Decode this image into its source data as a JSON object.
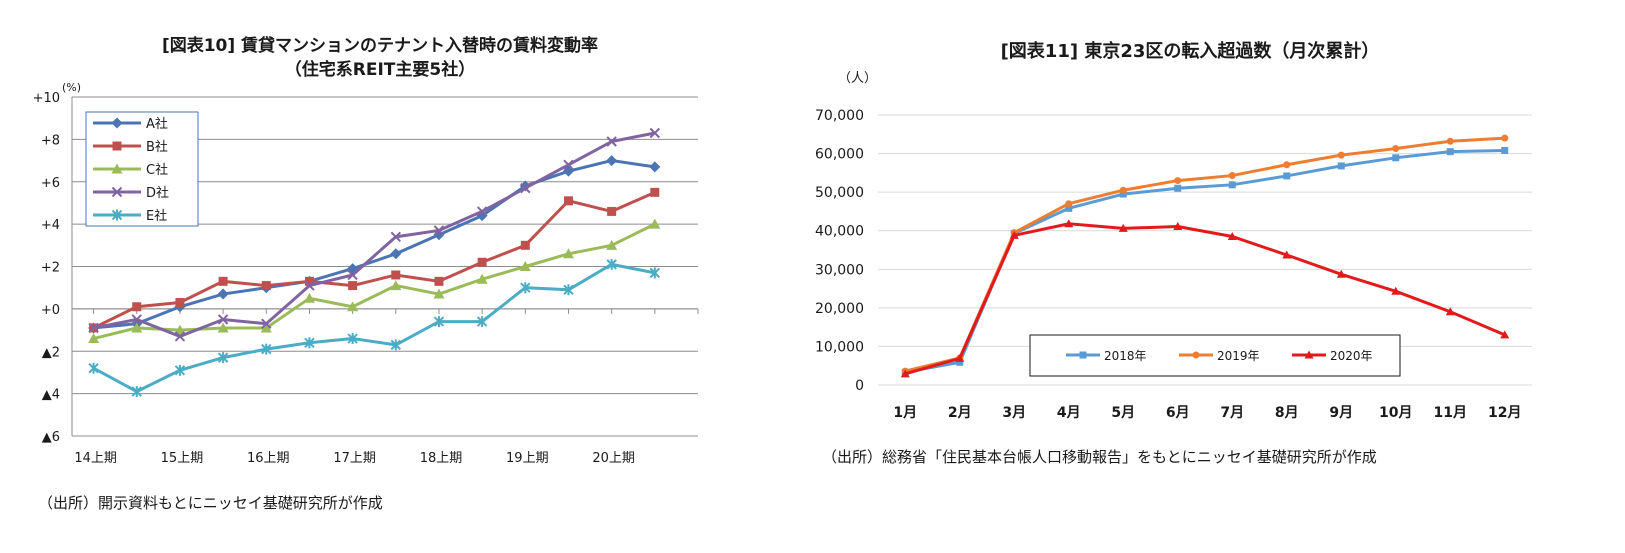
{
  "charts": [
    {
      "title_line1": "[図表10] 賃貸マンションのテナント入替時の賃料変動率",
      "title_line2": "（住宅系REIT主要5社）",
      "unit": "(%)",
      "source": "（出所）開示資料もとにニッセイ基礎研究所が作成"
    },
    {
      "title": "[図表11] 東京23区の転入超過数（月次累計）",
      "unit": "（人）",
      "source": "（出所）総務省「住民基本台帳人口移動報告」をもとにニッセイ基礎研究所が作成"
    }
  ],
  "chart_data": [
    {
      "type": "line",
      "y_tick_labels": [
        "+10",
        "+8",
        "+6",
        "+4",
        "+2",
        "+0",
        "▲2",
        "▲4",
        "▲6"
      ],
      "y_ticks": [
        10,
        8,
        6,
        4,
        2,
        0,
        -2,
        -4,
        -6
      ],
      "ylim": [
        -6,
        10
      ],
      "x_tick_labels": [
        "14上期",
        "15上期",
        "16上期",
        "17上期",
        "18上期",
        "19上期",
        "20上期"
      ],
      "x_tick_positions": [
        0,
        2,
        4,
        6,
        8,
        10,
        12
      ],
      "x_count": 14,
      "grid": true,
      "legend_position": "top-left",
      "series": [
        {
          "name": "A社",
          "color": "#4a74b4",
          "marker": "diamond",
          "values": [
            -0.9,
            -0.7,
            0.1,
            0.7,
            1.0,
            1.3,
            1.9,
            2.6,
            3.5,
            4.4,
            5.8,
            6.5,
            7.0,
            6.7
          ]
        },
        {
          "name": "B社",
          "color": "#c0504d",
          "marker": "square",
          "values": [
            -0.9,
            0.1,
            0.3,
            1.3,
            1.1,
            1.3,
            1.1,
            1.6,
            1.3,
            2.2,
            3.0,
            5.1,
            4.6,
            5.5
          ]
        },
        {
          "name": "C社",
          "color": "#9bbb59",
          "marker": "triangle",
          "values": [
            -1.4,
            -0.9,
            -1.0,
            -0.9,
            -0.9,
            0.5,
            0.1,
            1.1,
            0.7,
            1.4,
            2.0,
            2.6,
            3.0,
            4.0
          ]
        },
        {
          "name": "D社",
          "color": "#8064a2",
          "marker": "x",
          "values": [
            -0.9,
            -0.5,
            -1.3,
            -0.5,
            -0.7,
            1.1,
            1.6,
            3.4,
            3.7,
            4.6,
            5.7,
            6.8,
            7.9,
            8.3
          ]
        },
        {
          "name": "E社",
          "color": "#4bacc6",
          "marker": "star",
          "values": [
            -2.8,
            -3.9,
            -2.9,
            -2.3,
            -1.9,
            -1.6,
            -1.4,
            -1.7,
            -0.6,
            -0.6,
            1.0,
            0.9,
            2.1,
            1.7
          ]
        }
      ]
    },
    {
      "type": "line",
      "categories": [
        "1月",
        "2月",
        "3月",
        "4月",
        "5月",
        "6月",
        "7月",
        "8月",
        "9月",
        "10月",
        "11月",
        "12月"
      ],
      "y_tick_labels": [
        "70,000",
        "60,000",
        "50,000",
        "40,000",
        "30,000",
        "20,000",
        "10,000",
        "0"
      ],
      "y_ticks": [
        70000,
        60000,
        50000,
        40000,
        30000,
        20000,
        10000,
        0
      ],
      "ylim": [
        0,
        70000
      ],
      "grid": true,
      "legend_position": "bottom-center",
      "series": [
        {
          "name": "2018年",
          "color": "#5b9bd5",
          "marker": "square",
          "values": [
            3300,
            5900,
            39300,
            45800,
            49500,
            51000,
            51900,
            54200,
            56800,
            58900,
            60500,
            60800
          ]
        },
        {
          "name": "2019年",
          "color": "#ed7d31",
          "marker": "circle",
          "values": [
            3600,
            7000,
            39500,
            47000,
            50500,
            53000,
            54300,
            57100,
            59600,
            61300,
            63200,
            64000
          ]
        },
        {
          "name": "2020年",
          "color": "#e31a1c",
          "marker": "triangle",
          "values": [
            2900,
            6900,
            38800,
            41800,
            40600,
            41100,
            38500,
            33700,
            28700,
            24300,
            19000,
            13000
          ]
        }
      ]
    }
  ]
}
